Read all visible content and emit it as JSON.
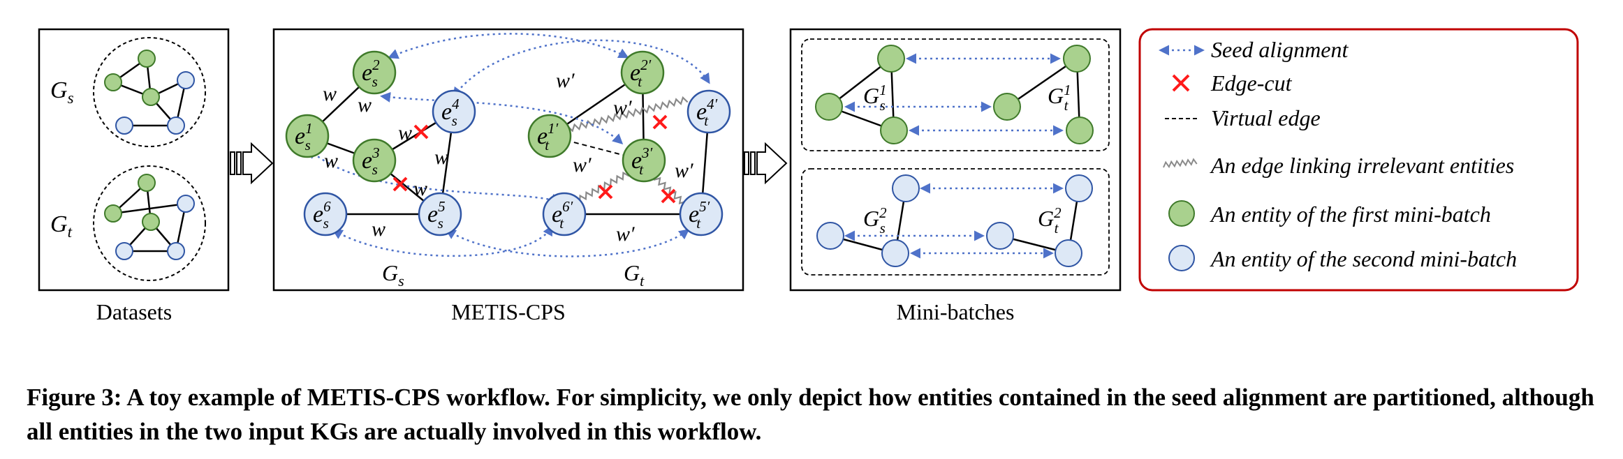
{
  "panels": {
    "datasets": {
      "label": "Datasets",
      "gs": "G",
      "gs_sub": "s",
      "gt": "G",
      "gt_sub": "t"
    },
    "metis": {
      "label": "METIS-CPS",
      "gs": "G",
      "gs_sub": "s",
      "gt": "G",
      "gt_sub": "t",
      "edge_w": "w",
      "edge_wp": "w′",
      "entity_letter": "e",
      "entities": {
        "es1": {
          "sub": "s",
          "sup": "1"
        },
        "es2": {
          "sub": "s",
          "sup": "2"
        },
        "es3": {
          "sub": "s",
          "sup": "3"
        },
        "es4": {
          "sub": "s",
          "sup": "4"
        },
        "es5": {
          "sub": "s",
          "sup": "5"
        },
        "es6": {
          "sub": "s",
          "sup": "6"
        },
        "et1": {
          "sub": "t",
          "sup": "1′"
        },
        "et2": {
          "sub": "t",
          "sup": "2′"
        },
        "et3": {
          "sub": "t",
          "sup": "3′"
        },
        "et4": {
          "sub": "t",
          "sup": "4′"
        },
        "et5": {
          "sub": "t",
          "sup": "5′"
        },
        "et6": {
          "sub": "t",
          "sup": "6′"
        }
      }
    },
    "minibatches": {
      "label": "Mini-batches",
      "g": "G",
      "gs1_sub": "s",
      "gs1_sup": "1",
      "gt1_sub": "t",
      "gt1_sup": "1",
      "gs2_sub": "s",
      "gs2_sup": "2",
      "gt2_sub": "t",
      "gt2_sup": "2"
    }
  },
  "legend": {
    "seed_alignment": "Seed alignment",
    "edge_cut": "Edge-cut",
    "virtual_edge": "Virtual edge",
    "irrelevant_edge": "An edge linking irrelevant entities",
    "first_batch": "An entity of the first mini-batch",
    "second_batch": "An entity of the second mini-batch"
  },
  "caption": "Figure 3: A toy example of METIS-CPS workflow. For simplicity, we only depict how entities contained in the seed alignment are partitioned, although all entities in the two input KGs are actually involved in this workflow.",
  "colors": {
    "green_fill": "#a9d18e",
    "green_stroke": "#3f7a2a",
    "blue_fill": "#dde8f6",
    "blue_stroke": "#2f55a4",
    "seed_arrow": "#4f72c9",
    "cut": "#ff1a1a",
    "legend_border": "#c00000"
  }
}
